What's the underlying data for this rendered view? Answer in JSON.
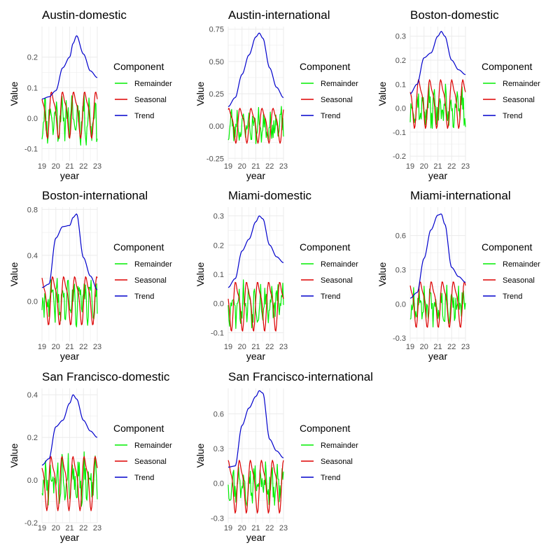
{
  "colors": {
    "Remainder": "#00ee00",
    "Seasonal": "#dd0000",
    "Trend": "#0000cc",
    "grid": "#ebebeb",
    "tick_text": "#4d4d4d"
  },
  "chart_data": [
    {
      "type": "line",
      "title": "Austin-domestic",
      "xlabel": "year",
      "ylabel": "Value",
      "xlim": [
        19,
        23
      ],
      "ylim": [
        -0.14,
        0.3
      ],
      "x_ticks": [
        19,
        20,
        21,
        22,
        23
      ],
      "x_tick_labels": [
        "19",
        "20",
        "21",
        "22",
        "23"
      ],
      "y_ticks": [
        -0.1,
        0.0,
        0.1,
        0.2
      ],
      "y_tick_labels": [
        "-0.1",
        "0.0",
        "0.1",
        "0.2"
      ],
      "legend": {
        "title": "Component",
        "entries": [
          "Remainder",
          "Seasonal",
          "Trend"
        ]
      },
      "series": [
        {
          "name": "Trend",
          "x": [
            19,
            19.5,
            20,
            20.5,
            21,
            21.25,
            21.5,
            22,
            22.5,
            23
          ],
          "values": [
            0.063,
            0.07,
            0.09,
            0.165,
            0.2,
            0.245,
            0.27,
            0.21,
            0.155,
            0.133
          ]
        },
        {
          "name": "Seasonal",
          "amplitude": 0.09,
          "offset": 0.02,
          "period": 0.8,
          "phase": 0.3
        },
        {
          "name": "Remainder",
          "amplitude": 0.08,
          "offset": 0.0,
          "seed": 11
        }
      ]
    },
    {
      "type": "line",
      "title": "Austin-international",
      "xlabel": "year",
      "ylabel": "Value",
      "xlim": [
        19,
        23
      ],
      "ylim": [
        -0.27,
        0.77
      ],
      "x_ticks": [
        19,
        20,
        21,
        22,
        23
      ],
      "x_tick_labels": [
        "19",
        "20",
        "21",
        "22",
        "23"
      ],
      "y_ticks": [
        -0.25,
        0.0,
        0.25,
        0.5,
        0.75
      ],
      "y_tick_labels": [
        "-0.25",
        "0.00",
        "0.25",
        "0.50",
        "0.75"
      ],
      "legend": {
        "title": "Component",
        "entries": [
          "Remainder",
          "Seasonal",
          "Trend"
        ]
      },
      "series": [
        {
          "name": "Trend",
          "x": [
            19,
            19.5,
            20,
            20.5,
            21,
            21.25,
            21.5,
            22,
            22.5,
            23
          ],
          "values": [
            0.15,
            0.22,
            0.4,
            0.55,
            0.69,
            0.72,
            0.68,
            0.45,
            0.3,
            0.22
          ]
        },
        {
          "name": "Seasonal",
          "amplitude": 0.16,
          "offset": 0.02,
          "period": 0.8,
          "phase": 0.1
        },
        {
          "name": "Remainder",
          "amplitude": 0.14,
          "offset": 0.0,
          "seed": 23
        }
      ]
    },
    {
      "type": "line",
      "title": "Boston-domestic",
      "xlabel": "year",
      "ylabel": "Value",
      "xlim": [
        19,
        23
      ],
      "ylim": [
        -0.22,
        0.34
      ],
      "x_ticks": [
        19,
        20,
        21,
        22,
        23
      ],
      "x_tick_labels": [
        "19",
        "20",
        "21",
        "22",
        "23"
      ],
      "y_ticks": [
        -0.2,
        -0.1,
        0.0,
        0.1,
        0.2,
        0.3
      ],
      "y_tick_labels": [
        "-0.2",
        "-0.1",
        "0.0",
        "0.1",
        "0.2",
        "0.3"
      ],
      "legend": {
        "title": "Component",
        "entries": [
          "Remainder",
          "Seasonal",
          "Trend"
        ]
      },
      "series": [
        {
          "name": "Trend",
          "x": [
            19,
            19.5,
            20,
            20.5,
            21,
            21.25,
            21.5,
            22,
            22.5,
            23
          ],
          "values": [
            0.06,
            0.1,
            0.21,
            0.23,
            0.3,
            0.32,
            0.3,
            0.2,
            0.16,
            0.14
          ]
        },
        {
          "name": "Seasonal",
          "amplitude": 0.12,
          "offset": 0.03,
          "period": 0.8,
          "phase": 0.4
        },
        {
          "name": "Remainder",
          "amplitude": 0.09,
          "offset": 0.0,
          "seed": 37
        }
      ]
    },
    {
      "type": "line",
      "title": "Boston-international",
      "xlabel": "year",
      "ylabel": "Value",
      "xlim": [
        19,
        23
      ],
      "ylim": [
        -0.35,
        0.82
      ],
      "x_ticks": [
        19,
        20,
        21,
        22,
        23
      ],
      "x_tick_labels": [
        "19",
        "20",
        "21",
        "22",
        "23"
      ],
      "y_ticks": [
        0.0,
        0.4,
        0.8
      ],
      "y_tick_labels": [
        "0.0",
        "0.4",
        "0.8"
      ],
      "legend": {
        "title": "Component",
        "entries": [
          "Remainder",
          "Seasonal",
          "Trend"
        ]
      },
      "series": [
        {
          "name": "Trend",
          "x": [
            19,
            19.5,
            20,
            20.5,
            21,
            21.25,
            21.5,
            22,
            22.5,
            23
          ],
          "values": [
            0.12,
            0.15,
            0.55,
            0.65,
            0.66,
            0.73,
            0.76,
            0.38,
            0.22,
            0.1
          ]
        },
        {
          "name": "Seasonal",
          "amplitude": 0.25,
          "offset": 0.03,
          "period": 0.8,
          "phase": 0.2
        },
        {
          "name": "Remainder",
          "amplitude": 0.2,
          "offset": 0.0,
          "seed": 41
        }
      ]
    },
    {
      "type": "line",
      "title": "Miami-domestic",
      "xlabel": "year",
      "ylabel": "Value",
      "xlim": [
        19,
        23
      ],
      "ylim": [
        -0.13,
        0.33
      ],
      "x_ticks": [
        19,
        20,
        21,
        22,
        23
      ],
      "x_tick_labels": [
        "19",
        "20",
        "21",
        "22",
        "23"
      ],
      "y_ticks": [
        -0.1,
        0.0,
        0.1,
        0.2,
        0.3
      ],
      "y_tick_labels": [
        "-0.1",
        "0.0",
        "0.1",
        "0.2",
        "0.3"
      ],
      "legend": {
        "title": "Component",
        "entries": [
          "Remainder",
          "Seasonal",
          "Trend"
        ]
      },
      "series": [
        {
          "name": "Trend",
          "x": [
            19,
            19.5,
            20,
            20.5,
            21,
            21.25,
            21.5,
            22,
            22.5,
            23
          ],
          "values": [
            0.055,
            0.085,
            0.18,
            0.22,
            0.28,
            0.3,
            0.29,
            0.2,
            0.16,
            0.14
          ]
        },
        {
          "name": "Seasonal",
          "amplitude": 0.1,
          "offset": 0.0,
          "period": 0.8,
          "phase": 0.5
        },
        {
          "name": "Remainder",
          "amplitude": 0.08,
          "offset": 0.0,
          "seed": 53
        }
      ]
    },
    {
      "type": "line",
      "title": "Miami-international",
      "xlabel": "year",
      "ylabel": "Value",
      "xlim": [
        19,
        23
      ],
      "ylim": [
        -0.33,
        0.85
      ],
      "x_ticks": [
        19,
        20,
        21,
        22,
        23
      ],
      "x_tick_labels": [
        "19",
        "20",
        "21",
        "22",
        "23"
      ],
      "y_ticks": [
        -0.3,
        0.0,
        0.3,
        0.6
      ],
      "y_tick_labels": [
        "-0.3",
        "0.0",
        "0.3",
        "0.6"
      ],
      "legend": {
        "title": "Component",
        "entries": [
          "Remainder",
          "Seasonal",
          "Trend"
        ]
      },
      "series": [
        {
          "name": "Trend",
          "x": [
            19,
            19.5,
            20,
            20.5,
            21,
            21.25,
            21.5,
            22,
            22.5,
            23
          ],
          "values": [
            0.05,
            0.1,
            0.4,
            0.65,
            0.78,
            0.79,
            0.7,
            0.32,
            0.24,
            0.19
          ]
        },
        {
          "name": "Seasonal",
          "amplitude": 0.24,
          "offset": 0.02,
          "period": 0.8,
          "phase": 0.25
        },
        {
          "name": "Remainder",
          "amplitude": 0.18,
          "offset": 0.0,
          "seed": 67
        }
      ]
    },
    {
      "type": "line",
      "title": "San Francisco-domestic",
      "xlabel": "year",
      "ylabel": "Value",
      "xlim": [
        19,
        23
      ],
      "ylim": [
        -0.2,
        0.43
      ],
      "x_ticks": [
        19,
        20,
        21,
        22,
        23
      ],
      "x_tick_labels": [
        "19",
        "20",
        "21",
        "22",
        "23"
      ],
      "y_ticks": [
        -0.2,
        0.0,
        0.2,
        0.4
      ],
      "y_tick_labels": [
        "-0.2",
        "0.0",
        "0.2",
        "0.4"
      ],
      "legend": {
        "title": "Component",
        "entries": [
          "Remainder",
          "Seasonal",
          "Trend"
        ]
      },
      "series": [
        {
          "name": "Trend",
          "x": [
            19,
            19.5,
            20,
            20.5,
            21,
            21.25,
            21.5,
            22,
            22.5,
            23
          ],
          "values": [
            0.07,
            0.1,
            0.25,
            0.28,
            0.36,
            0.4,
            0.38,
            0.28,
            0.23,
            0.2
          ]
        },
        {
          "name": "Seasonal",
          "amplitude": 0.15,
          "offset": 0.0,
          "period": 0.8,
          "phase": 0.35
        },
        {
          "name": "Remainder",
          "amplitude": 0.12,
          "offset": 0.0,
          "seed": 79
        }
      ]
    },
    {
      "type": "line",
      "title": "San Francisco-international",
      "xlabel": "year",
      "ylabel": "Value",
      "xlim": [
        19,
        23
      ],
      "ylim": [
        -0.34,
        0.82
      ],
      "x_ticks": [
        19,
        20,
        21,
        22,
        23
      ],
      "x_tick_labels": [
        "19",
        "20",
        "21",
        "22",
        "23"
      ],
      "y_ticks": [
        -0.3,
        0.0,
        0.3,
        0.6
      ],
      "y_tick_labels": [
        "-0.3",
        "0.0",
        "0.3",
        "0.6"
      ],
      "legend": {
        "title": "Component",
        "entries": [
          "Remainder",
          "Seasonal",
          "Trend"
        ]
      },
      "series": [
        {
          "name": "Trend",
          "x": [
            19,
            19.5,
            20,
            20.5,
            21,
            21.25,
            21.5,
            22,
            22.5,
            23
          ],
          "values": [
            0.14,
            0.15,
            0.5,
            0.65,
            0.75,
            0.8,
            0.78,
            0.38,
            0.28,
            0.22
          ]
        },
        {
          "name": "Seasonal",
          "amplitude": 0.27,
          "offset": 0.0,
          "period": 0.8,
          "phase": 0.15
        },
        {
          "name": "Remainder",
          "amplitude": 0.18,
          "offset": 0.0,
          "seed": 97
        }
      ]
    }
  ]
}
